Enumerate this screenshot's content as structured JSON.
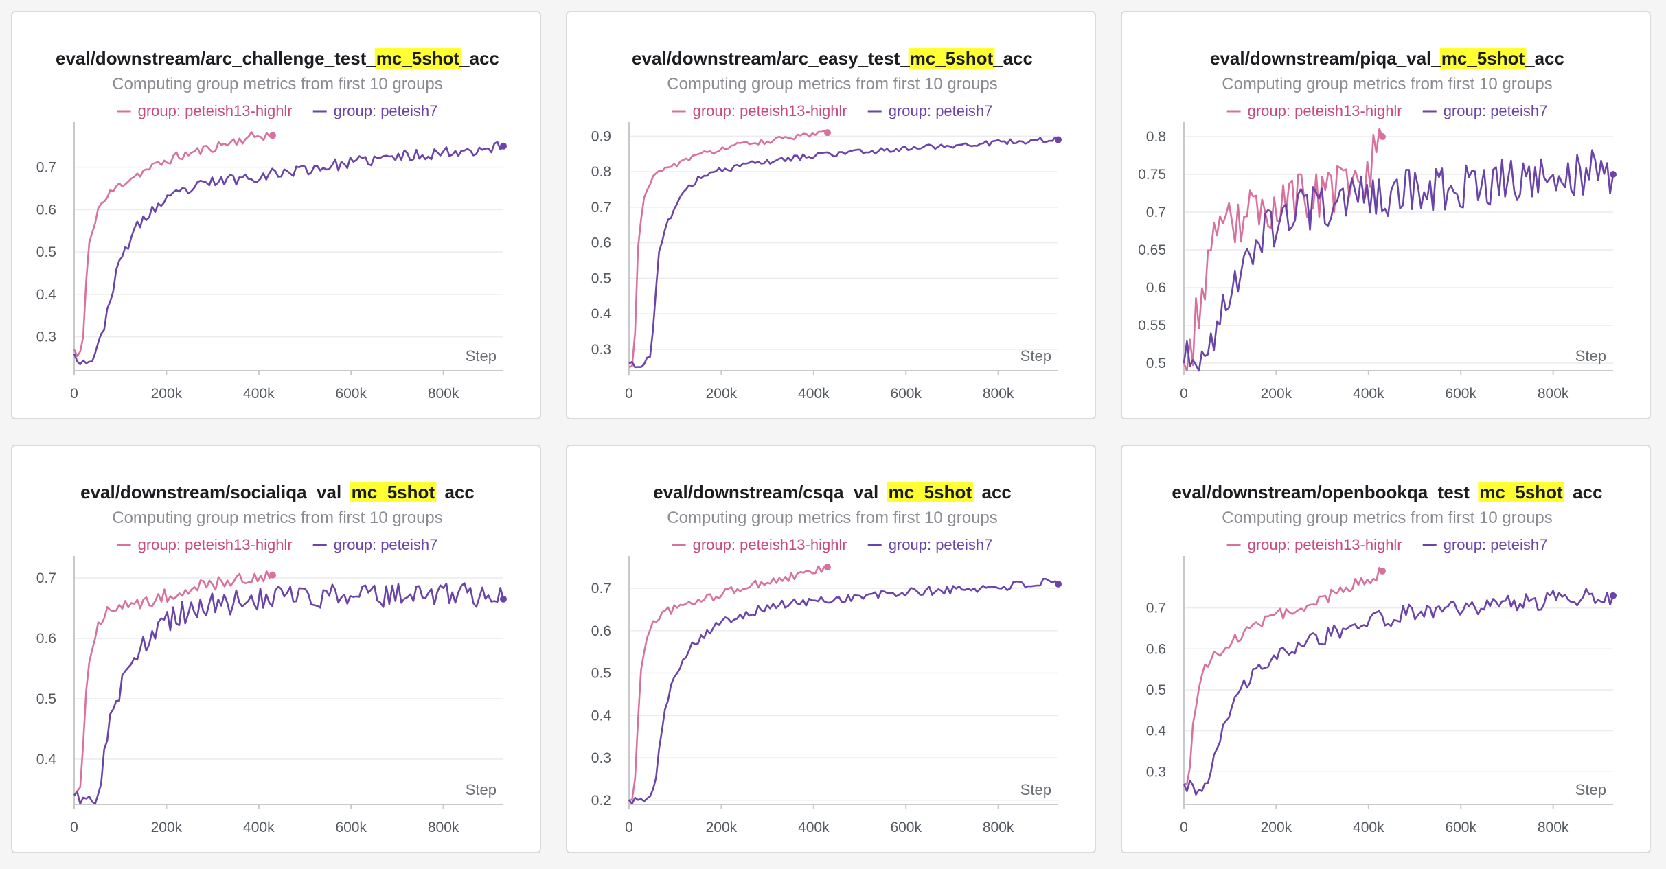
{
  "colors": {
    "highlight": "#ffff33",
    "series_pink": "#d9719e",
    "series_purple": "#6a44a8",
    "legend_pink_text": "#c74b82",
    "legend_purple_text": "#6a44a8"
  },
  "common": {
    "subtitle": "Computing group metrics from first 10 groups",
    "legend": [
      "group: peteish13-highlr",
      "group: peteish7"
    ],
    "xlabel": "Step",
    "x_ticks": [
      0,
      200000,
      400000,
      600000,
      800000
    ],
    "x_tick_labels": [
      "0",
      "200k",
      "400k",
      "600k",
      "800k"
    ]
  },
  "chart_data": [
    {
      "type": "line",
      "title_prefix": "eval/downstream/arc_challenge_test_",
      "title_highlight": "mc_5shot",
      "title_suffix": "_acc",
      "xlabel": "Step",
      "xlim": [
        0,
        930000
      ],
      "ylim": [
        0.22,
        0.79
      ],
      "y_ticks": [
        0.3,
        0.4,
        0.5,
        0.6,
        0.7
      ],
      "y_tick_labels": [
        "0.3",
        "0.4",
        "0.5",
        "0.6",
        "0.7"
      ],
      "series": [
        {
          "name": "group: peteish13-highlr",
          "x_end": 430000,
          "points": [
            [
              0,
              0.27
            ],
            [
              8000,
              0.25
            ],
            [
              15000,
              0.27
            ],
            [
              20000,
              0.3
            ],
            [
              25000,
              0.41
            ],
            [
              30000,
              0.5
            ],
            [
              40000,
              0.55
            ],
            [
              50000,
              0.6
            ],
            [
              65000,
              0.62
            ],
            [
              80000,
              0.64
            ],
            [
              100000,
              0.66
            ],
            [
              130000,
              0.68
            ],
            [
              170000,
              0.7
            ],
            [
              210000,
              0.72
            ],
            [
              260000,
              0.735
            ],
            [
              310000,
              0.75
            ],
            [
              360000,
              0.765
            ],
            [
              400000,
              0.775
            ],
            [
              430000,
              0.775
            ]
          ],
          "noise": 0.012,
          "seed": 11
        },
        {
          "name": "group: peteish7",
          "x_end": 930000,
          "points": [
            [
              0,
              0.26
            ],
            [
              20000,
              0.24
            ],
            [
              40000,
              0.25
            ],
            [
              55000,
              0.28
            ],
            [
              65000,
              0.33
            ],
            [
              80000,
              0.4
            ],
            [
              100000,
              0.48
            ],
            [
              130000,
              0.55
            ],
            [
              170000,
              0.6
            ],
            [
              230000,
              0.64
            ],
            [
              300000,
              0.665
            ],
            [
              400000,
              0.68
            ],
            [
              500000,
              0.695
            ],
            [
              600000,
              0.71
            ],
            [
              700000,
              0.725
            ],
            [
              800000,
              0.735
            ],
            [
              900000,
              0.745
            ],
            [
              930000,
              0.75
            ]
          ],
          "noise": 0.014,
          "seed": 23
        }
      ]
    },
    {
      "type": "line",
      "title_prefix": "eval/downstream/arc_easy_test_",
      "title_highlight": "mc_5shot",
      "title_suffix": "_acc",
      "xlabel": "Step",
      "xlim": [
        0,
        930000
      ],
      "ylim": [
        0.24,
        0.92
      ],
      "y_ticks": [
        0.3,
        0.4,
        0.5,
        0.6,
        0.7,
        0.8,
        0.9
      ],
      "y_tick_labels": [
        "0.3",
        "0.4",
        "0.5",
        "0.6",
        "0.7",
        "0.8",
        "0.9"
      ],
      "series": [
        {
          "name": "group: peteish13-highlr",
          "x_end": 430000,
          "points": [
            [
              0,
              0.25
            ],
            [
              10000,
              0.25
            ],
            [
              15000,
              0.4
            ],
            [
              20000,
              0.6
            ],
            [
              30000,
              0.72
            ],
            [
              45000,
              0.77
            ],
            [
              65000,
              0.8
            ],
            [
              100000,
              0.82
            ],
            [
              150000,
              0.845
            ],
            [
              200000,
              0.865
            ],
            [
              260000,
              0.88
            ],
            [
              320000,
              0.89
            ],
            [
              380000,
              0.9
            ],
            [
              430000,
              0.91
            ]
          ],
          "noise": 0.008,
          "seed": 31
        },
        {
          "name": "group: peteish7",
          "x_end": 930000,
          "points": [
            [
              0,
              0.26
            ],
            [
              20000,
              0.25
            ],
            [
              45000,
              0.28
            ],
            [
              55000,
              0.4
            ],
            [
              65000,
              0.58
            ],
            [
              85000,
              0.66
            ],
            [
              110000,
              0.73
            ],
            [
              150000,
              0.78
            ],
            [
              200000,
              0.805
            ],
            [
              280000,
              0.825
            ],
            [
              400000,
              0.845
            ],
            [
              500000,
              0.855
            ],
            [
              600000,
              0.865
            ],
            [
              700000,
              0.875
            ],
            [
              800000,
              0.882
            ],
            [
              930000,
              0.89
            ]
          ],
          "noise": 0.008,
          "seed": 43
        }
      ]
    },
    {
      "type": "line",
      "title_prefix": "eval/downstream/piqa_val_",
      "title_highlight": "mc_5shot",
      "title_suffix": "_acc",
      "xlabel": "Step",
      "xlim": [
        0,
        930000
      ],
      "ylim": [
        0.49,
        0.81
      ],
      "y_ticks": [
        0.5,
        0.55,
        0.6,
        0.65,
        0.7,
        0.75,
        0.8
      ],
      "y_tick_labels": [
        "0.5",
        "0.55",
        "0.6",
        "0.65",
        "0.7",
        "0.75",
        "0.8"
      ],
      "series": [
        {
          "name": "group: peteish13-highlr",
          "x_end": 430000,
          "points": [
            [
              0,
              0.5
            ],
            [
              15000,
              0.51
            ],
            [
              25000,
              0.55
            ],
            [
              40000,
              0.6
            ],
            [
              60000,
              0.65
            ],
            [
              100000,
              0.68
            ],
            [
              150000,
              0.7
            ],
            [
              220000,
              0.715
            ],
            [
              300000,
              0.725
            ],
            [
              380000,
              0.735
            ],
            [
              430000,
              0.8
            ]
          ],
          "noise": 0.035,
          "seed": 53
        },
        {
          "name": "group: peteish7",
          "x_end": 930000,
          "points": [
            [
              0,
              0.5
            ],
            [
              40000,
              0.5
            ],
            [
              60000,
              0.53
            ],
            [
              90000,
              0.58
            ],
            [
              130000,
              0.64
            ],
            [
              180000,
              0.68
            ],
            [
              250000,
              0.7
            ],
            [
              350000,
              0.715
            ],
            [
              450000,
              0.725
            ],
            [
              600000,
              0.735
            ],
            [
              750000,
              0.745
            ],
            [
              900000,
              0.755
            ],
            [
              930000,
              0.75
            ]
          ],
          "noise": 0.03,
          "seed": 67
        }
      ]
    },
    {
      "type": "line",
      "title_prefix": "eval/downstream/socialiqa_val_",
      "title_highlight": "mc_5shot",
      "title_suffix": "_acc",
      "xlabel": "Step",
      "xlim": [
        0,
        930000
      ],
      "ylim": [
        0.325,
        0.725
      ],
      "y_ticks": [
        0.4,
        0.5,
        0.6,
        0.7
      ],
      "y_tick_labels": [
        "0.4",
        "0.5",
        "0.6",
        "0.7"
      ],
      "series": [
        {
          "name": "group: peteish13-highlr",
          "x_end": 430000,
          "points": [
            [
              0,
              0.34
            ],
            [
              10000,
              0.34
            ],
            [
              18000,
              0.4
            ],
            [
              25000,
              0.5
            ],
            [
              35000,
              0.58
            ],
            [
              50000,
              0.62
            ],
            [
              70000,
              0.64
            ],
            [
              110000,
              0.65
            ],
            [
              160000,
              0.665
            ],
            [
              220000,
              0.675
            ],
            [
              300000,
              0.69
            ],
            [
              380000,
              0.7
            ],
            [
              430000,
              0.705
            ]
          ],
          "noise": 0.013,
          "seed": 71
        },
        {
          "name": "group: peteish7",
          "x_end": 930000,
          "points": [
            [
              0,
              0.34
            ],
            [
              30000,
              0.33
            ],
            [
              50000,
              0.34
            ],
            [
              65000,
              0.4
            ],
            [
              80000,
              0.47
            ],
            [
              100000,
              0.52
            ],
            [
              130000,
              0.57
            ],
            [
              170000,
              0.61
            ],
            [
              230000,
              0.64
            ],
            [
              300000,
              0.655
            ],
            [
              400000,
              0.665
            ],
            [
              550000,
              0.67
            ],
            [
              700000,
              0.672
            ],
            [
              850000,
              0.674
            ],
            [
              930000,
              0.665
            ]
          ],
          "noise": 0.02,
          "seed": 83
        }
      ]
    },
    {
      "type": "line",
      "title_prefix": "eval/downstream/csqa_val_",
      "title_highlight": "mc_5shot",
      "title_suffix": "_acc",
      "xlabel": "Step",
      "xlim": [
        0,
        930000
      ],
      "ylim": [
        0.19,
        0.76
      ],
      "y_ticks": [
        0.2,
        0.3,
        0.4,
        0.5,
        0.6,
        0.7
      ],
      "y_tick_labels": [
        "0.2",
        "0.3",
        "0.4",
        "0.5",
        "0.6",
        "0.7"
      ],
      "series": [
        {
          "name": "group: peteish13-highlr",
          "x_end": 430000,
          "points": [
            [
              0,
              0.2
            ],
            [
              10000,
              0.2
            ],
            [
              18000,
              0.35
            ],
            [
              25000,
              0.5
            ],
            [
              35000,
              0.57
            ],
            [
              50000,
              0.62
            ],
            [
              80000,
              0.645
            ],
            [
              120000,
              0.66
            ],
            [
              180000,
              0.68
            ],
            [
              240000,
              0.7
            ],
            [
              300000,
              0.715
            ],
            [
              370000,
              0.73
            ],
            [
              430000,
              0.75
            ]
          ],
          "noise": 0.01,
          "seed": 97
        },
        {
          "name": "group: peteish7",
          "x_end": 930000,
          "points": [
            [
              0,
              0.2
            ],
            [
              40000,
              0.2
            ],
            [
              55000,
              0.22
            ],
            [
              65000,
              0.33
            ],
            [
              80000,
              0.42
            ],
            [
              100000,
              0.5
            ],
            [
              130000,
              0.56
            ],
            [
              170000,
              0.6
            ],
            [
              230000,
              0.635
            ],
            [
              320000,
              0.66
            ],
            [
              450000,
              0.675
            ],
            [
              600000,
              0.69
            ],
            [
              750000,
              0.7
            ],
            [
              900000,
              0.712
            ],
            [
              930000,
              0.71
            ]
          ],
          "noise": 0.011,
          "seed": 101
        }
      ]
    },
    {
      "type": "line",
      "title_prefix": "eval/downstream/openbookqa_test_",
      "title_highlight": "mc_5shot",
      "title_suffix": "_acc",
      "xlabel": "Step",
      "xlim": [
        0,
        930000
      ],
      "ylim": [
        0.22,
        0.81
      ],
      "y_ticks": [
        0.3,
        0.4,
        0.5,
        0.6,
        0.7
      ],
      "y_tick_labels": [
        "0.3",
        "0.4",
        "0.5",
        "0.6",
        "0.7"
      ],
      "series": [
        {
          "name": "group: peteish13-highlr",
          "x_end": 430000,
          "points": [
            [
              0,
              0.27
            ],
            [
              10000,
              0.25
            ],
            [
              20000,
              0.42
            ],
            [
              30000,
              0.5
            ],
            [
              45000,
              0.56
            ],
            [
              70000,
              0.59
            ],
            [
              110000,
              0.62
            ],
            [
              160000,
              0.66
            ],
            [
              220000,
              0.69
            ],
            [
              290000,
              0.72
            ],
            [
              360000,
              0.75
            ],
            [
              430000,
              0.79
            ]
          ],
          "noise": 0.016,
          "seed": 109
        },
        {
          "name": "group: peteish7",
          "x_end": 930000,
          "points": [
            [
              0,
              0.27
            ],
            [
              30000,
              0.24
            ],
            [
              50000,
              0.27
            ],
            [
              65000,
              0.32
            ],
            [
              85000,
              0.4
            ],
            [
              110000,
              0.48
            ],
            [
              150000,
              0.54
            ],
            [
              200000,
              0.58
            ],
            [
              280000,
              0.62
            ],
            [
              380000,
              0.66
            ],
            [
              500000,
              0.69
            ],
            [
              650000,
              0.705
            ],
            [
              800000,
              0.72
            ],
            [
              930000,
              0.73
            ]
          ],
          "noise": 0.022,
          "seed": 127
        }
      ]
    }
  ]
}
